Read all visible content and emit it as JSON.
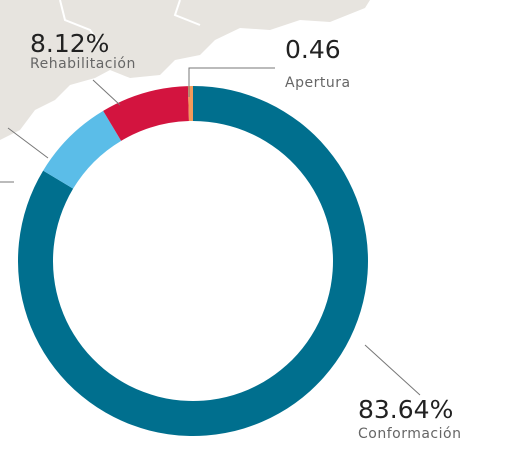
{
  "chart_data": {
    "type": "donut",
    "categories": [
      "Conformación",
      null,
      "Rehabilitación",
      "Apertura"
    ],
    "values": [
      83.64,
      7.78,
      8.12,
      0.46
    ],
    "value_labels": [
      "83.64%",
      null,
      "8.12%",
      "0.46"
    ],
    "colors": [
      "#006f8e",
      "#5bbde8",
      "#d3143f",
      "#f39a5a"
    ]
  }
}
